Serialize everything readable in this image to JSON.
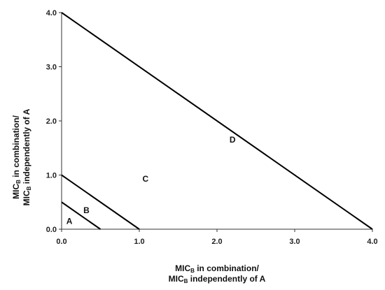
{
  "chart_data": {
    "type": "line",
    "x_axis": {
      "title_lines": [
        {
          "pre": "MIC",
          "sub": "B",
          "post": " in combination/"
        },
        {
          "pre": "MIC",
          "sub": "B",
          "post": " independently of A"
        }
      ],
      "ticks": [
        "0.0",
        "1.0",
        "2.0",
        "3.0",
        "4.0"
      ],
      "range": [
        0,
        4
      ]
    },
    "y_axis": {
      "title_lines": [
        {
          "pre": "MIC",
          "sub": "B",
          "post": " in combination/"
        },
        {
          "pre": "MIC",
          "sub": "B",
          "post": " independently of A"
        }
      ],
      "ticks": [
        "0.0",
        "1.0",
        "2.0",
        "3.0",
        "4.0"
      ],
      "range": [
        0,
        4
      ]
    },
    "series": [
      {
        "x": [
          0,
          0.5
        ],
        "y": [
          0.5,
          0
        ]
      },
      {
        "x": [
          0,
          1.0
        ],
        "y": [
          1.0,
          0
        ]
      },
      {
        "x": [
          0,
          4.0
        ],
        "y": [
          4.0,
          0
        ]
      }
    ],
    "region_labels": [
      {
        "text": "A",
        "x": 0.1,
        "y": 0.1
      },
      {
        "text": "B",
        "x": 0.32,
        "y": 0.3
      },
      {
        "text": "C",
        "x": 1.08,
        "y": 0.88
      },
      {
        "text": "D",
        "x": 2.2,
        "y": 1.6
      }
    ],
    "grid": false,
    "legend": "none"
  }
}
